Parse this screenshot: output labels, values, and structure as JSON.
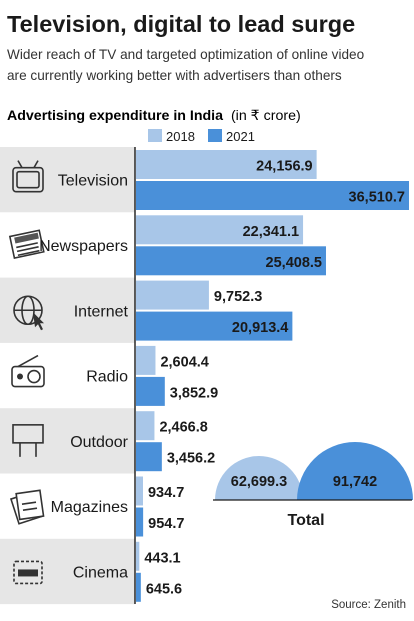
{
  "chart_data": {
    "type": "bar",
    "title": "Television, digital to lead surge",
    "subtitle_lines": [
      "Wider reach of TV and targeted optimization of online video",
      "are currently working better with advertisers than others"
    ],
    "chart_heading": "Advertising expenditure in India",
    "chart_heading_unit": "(in ₹ crore)",
    "categories": [
      "Television",
      "Newspapers",
      "Internet",
      "Radio",
      "Outdoor",
      "Magazines",
      "Cinema"
    ],
    "icons": [
      "tv-icon",
      "newspaper-icon",
      "internet-icon",
      "radio-icon",
      "billboard-icon",
      "magazine-icon",
      "cinema-ticket-icon"
    ],
    "series": [
      {
        "name": "2018",
        "values": [
          24156.9,
          22341.1,
          9752.3,
          2604.4,
          2466.8,
          934.7,
          443.1
        ],
        "labels": [
          "24,156.9",
          "22,341.1",
          "9,752.3",
          "2,604.4",
          "2,466.8",
          "934.7",
          "443.1"
        ]
      },
      {
        "name": "2021",
        "values": [
          36510.7,
          25408.5,
          20913.4,
          3852.9,
          3456.2,
          954.7,
          645.6
        ],
        "labels": [
          "36,510.7",
          "25,408.5",
          "20,913.4",
          "3,852.9",
          "3,456.2",
          "954.7",
          "645.6"
        ]
      }
    ],
    "totals": {
      "label": "Total",
      "values": [
        62699.3,
        91742
      ],
      "labels": [
        "62,699.3",
        "91,742"
      ]
    },
    "source": "Source: Zenith",
    "colors": {
      "series_2018": "#a8c6e8",
      "series_2021": "#4a90d9",
      "band": "#e6e6e6",
      "text": "#1a1a1a"
    }
  }
}
